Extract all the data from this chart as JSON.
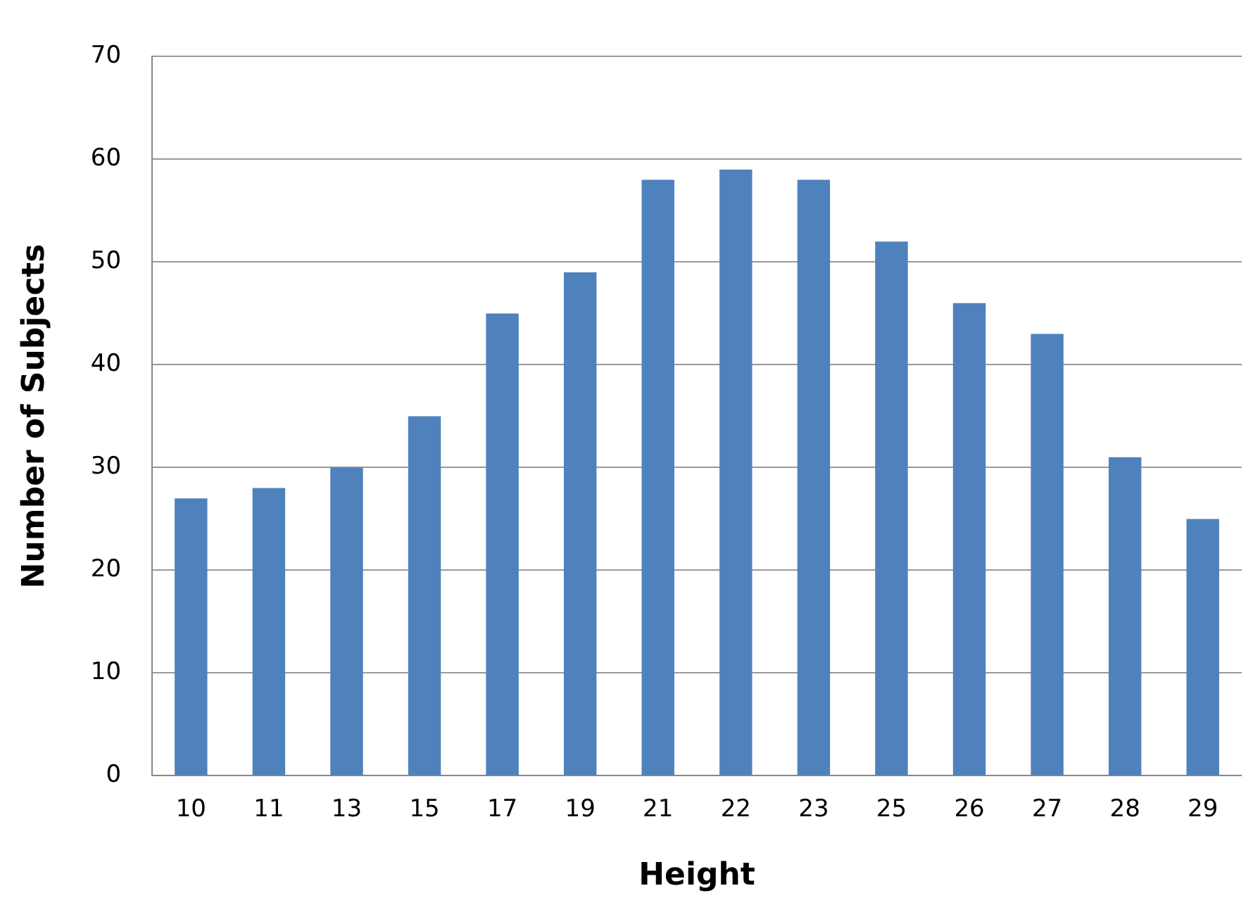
{
  "chart_data": {
    "type": "bar",
    "xlabel": "Height",
    "ylabel": "Number of Subjects",
    "categories": [
      "10",
      "11",
      "13",
      "15",
      "17",
      "19",
      "21",
      "22",
      "23",
      "25",
      "26",
      "27",
      "28",
      "29"
    ],
    "values": [
      27,
      28,
      30,
      35,
      45,
      49,
      58,
      59,
      58,
      52,
      46,
      43,
      31,
      25
    ],
    "color": "#4f81bd",
    "ylim": [
      0,
      70
    ],
    "yticks": [
      0,
      10,
      20,
      30,
      40,
      50,
      60,
      70
    ],
    "grid": "y",
    "legend": false
  }
}
